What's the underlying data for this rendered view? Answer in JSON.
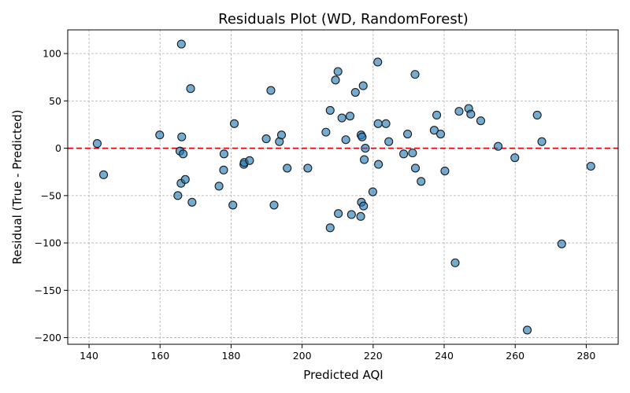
{
  "chart_data": {
    "type": "scatter",
    "title": "Residuals Plot (WD, RandomForest)",
    "xlabel": "Predicted AQI",
    "ylabel": "Residual (True - Predicted)",
    "xlim": [
      134,
      289
    ],
    "ylim": [
      -207,
      125
    ],
    "xticks": [
      140,
      160,
      180,
      200,
      220,
      240,
      260,
      280
    ],
    "yticks": [
      -200,
      -150,
      -100,
      -50,
      0,
      50,
      100
    ],
    "grid": true,
    "reference_line": {
      "y": 0,
      "style": "dashed",
      "color": "#e8000b"
    },
    "point_color": "#1f77b4",
    "points": [
      {
        "x": 142.3,
        "y": 5
      },
      {
        "x": 144.1,
        "y": -28
      },
      {
        "x": 159.9,
        "y": 14
      },
      {
        "x": 165.0,
        "y": -50
      },
      {
        "x": 165.6,
        "y": -3
      },
      {
        "x": 165.9,
        "y": -37
      },
      {
        "x": 166.0,
        "y": 110
      },
      {
        "x": 166.1,
        "y": 12
      },
      {
        "x": 166.5,
        "y": -6
      },
      {
        "x": 167.1,
        "y": -33
      },
      {
        "x": 168.6,
        "y": 63
      },
      {
        "x": 169.0,
        "y": -57
      },
      {
        "x": 176.6,
        "y": -40
      },
      {
        "x": 177.9,
        "y": -23
      },
      {
        "x": 178.0,
        "y": -6
      },
      {
        "x": 180.5,
        "y": -60
      },
      {
        "x": 180.9,
        "y": 26
      },
      {
        "x": 183.6,
        "y": -17
      },
      {
        "x": 183.7,
        "y": -15
      },
      {
        "x": 185.2,
        "y": -13
      },
      {
        "x": 189.9,
        "y": 10
      },
      {
        "x": 191.2,
        "y": 61
      },
      {
        "x": 192.1,
        "y": -60
      },
      {
        "x": 193.6,
        "y": 7
      },
      {
        "x": 194.2,
        "y": 14
      },
      {
        "x": 195.8,
        "y": -21
      },
      {
        "x": 201.6,
        "y": -21
      },
      {
        "x": 206.7,
        "y": 17
      },
      {
        "x": 207.9,
        "y": 40
      },
      {
        "x": 207.9,
        "y": -84
      },
      {
        "x": 209.4,
        "y": 72
      },
      {
        "x": 210.1,
        "y": 81
      },
      {
        "x": 210.2,
        "y": -69
      },
      {
        "x": 211.2,
        "y": 32
      },
      {
        "x": 212.3,
        "y": 9
      },
      {
        "x": 213.5,
        "y": 34
      },
      {
        "x": 213.9,
        "y": -70
      },
      {
        "x": 215.0,
        "y": 59
      },
      {
        "x": 216.5,
        "y": -72
      },
      {
        "x": 216.6,
        "y": 14
      },
      {
        "x": 216.7,
        "y": -57
      },
      {
        "x": 216.9,
        "y": 12
      },
      {
        "x": 217.2,
        "y": 66
      },
      {
        "x": 217.3,
        "y": -61
      },
      {
        "x": 217.5,
        "y": -12
      },
      {
        "x": 217.8,
        "y": 0
      },
      {
        "x": 219.9,
        "y": -46
      },
      {
        "x": 221.3,
        "y": 91
      },
      {
        "x": 221.4,
        "y": 26
      },
      {
        "x": 221.5,
        "y": -17
      },
      {
        "x": 223.6,
        "y": 26
      },
      {
        "x": 224.4,
        "y": 7
      },
      {
        "x": 228.6,
        "y": -6
      },
      {
        "x": 229.7,
        "y": 15
      },
      {
        "x": 231.1,
        "y": -5
      },
      {
        "x": 231.8,
        "y": 78
      },
      {
        "x": 231.9,
        "y": -21
      },
      {
        "x": 233.5,
        "y": -35
      },
      {
        "x": 237.2,
        "y": 19
      },
      {
        "x": 237.9,
        "y": 35
      },
      {
        "x": 239.0,
        "y": 15
      },
      {
        "x": 240.2,
        "y": -24
      },
      {
        "x": 243.1,
        "y": -121
      },
      {
        "x": 244.2,
        "y": 39
      },
      {
        "x": 246.9,
        "y": 42
      },
      {
        "x": 247.5,
        "y": 36
      },
      {
        "x": 250.3,
        "y": 29
      },
      {
        "x": 255.2,
        "y": 2
      },
      {
        "x": 259.9,
        "y": -10
      },
      {
        "x": 263.4,
        "y": -192
      },
      {
        "x": 266.2,
        "y": 35
      },
      {
        "x": 267.5,
        "y": 7
      },
      {
        "x": 273.1,
        "y": -101
      },
      {
        "x": 281.3,
        "y": -19
      }
    ]
  }
}
